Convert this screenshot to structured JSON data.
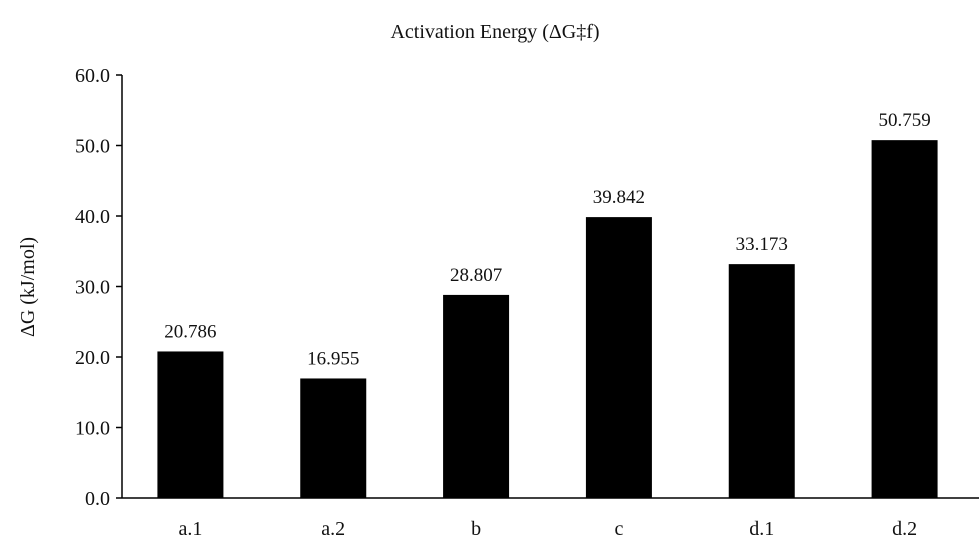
{
  "chart_data": {
    "type": "bar",
    "title": "Activation Energy (ΔG‡f)",
    "xlabel": "",
    "ylabel": "ΔG (kJ/mol)",
    "categories": [
      "a.1",
      "a.2",
      "b",
      "c",
      "d.1",
      "d.2"
    ],
    "values": [
      20.786,
      16.955,
      28.807,
      39.842,
      33.173,
      50.759
    ],
    "data_labels": [
      "20.786",
      "16.955",
      "28.807",
      "39.842",
      "33.173",
      "50.759"
    ],
    "ylim": [
      0,
      60
    ],
    "yticks": [
      0,
      10,
      20,
      30,
      40,
      50,
      60
    ],
    "ytick_labels": [
      "0.0",
      "10.0",
      "20.0",
      "30.0",
      "40.0",
      "50.0",
      "60.0"
    ],
    "grid": false,
    "legend": "none",
    "bar_color": "#000000"
  }
}
